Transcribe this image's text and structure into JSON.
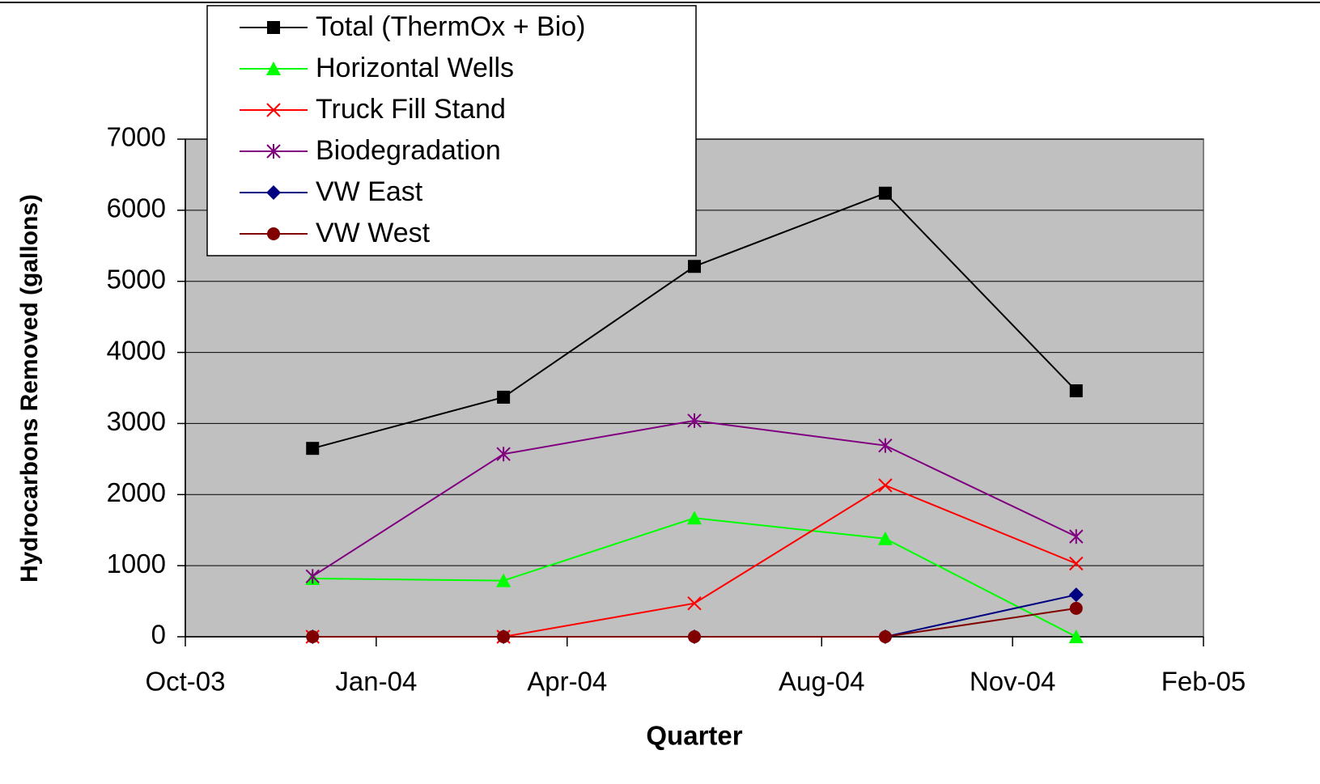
{
  "chart_data": {
    "type": "line",
    "x_label": "Quarter",
    "y_label": "Hydrocarbons Removed (gallons)",
    "x": [
      "2003-12",
      "2004-03",
      "2004-06",
      "2004-09",
      "2004-12"
    ],
    "xlim": [
      "2003-10",
      "2005-02"
    ],
    "xticks": [
      {
        "value": "2003-10",
        "label": "Oct-03"
      },
      {
        "value": "2004-01",
        "label": "Jan-04"
      },
      {
        "value": "2004-04",
        "label": "Apr-04"
      },
      {
        "value": "2004-08",
        "label": "Aug-04"
      },
      {
        "value": "2004-11",
        "label": "Nov-04"
      },
      {
        "value": "2005-02",
        "label": "Feb-05"
      }
    ],
    "ylim": [
      0,
      7000
    ],
    "yticks": [
      0,
      1000,
      2000,
      3000,
      4000,
      5000,
      6000,
      7000
    ],
    "grid": true,
    "legend": "top-left",
    "series": [
      {
        "name": "Total (ThermOx + Bio)",
        "color": "#000000",
        "marker": "square",
        "values": [
          2650,
          3370,
          5210,
          6240,
          3460
        ]
      },
      {
        "name": "Horizontal Wells",
        "color": "#00ff00",
        "marker": "triangle",
        "values": [
          820,
          790,
          1670,
          1380,
          0
        ]
      },
      {
        "name": "Truck Fill Stand",
        "color": "#ff0000",
        "marker": "x",
        "values": [
          0,
          0,
          470,
          2130,
          1030
        ]
      },
      {
        "name": "Biodegradation",
        "color": "#800080",
        "marker": "asterisk",
        "values": [
          850,
          2570,
          3040,
          2690,
          1410
        ]
      },
      {
        "name": "VW East",
        "color": "#000080",
        "marker": "diamond",
        "values": [
          0,
          0,
          0,
          0,
          590
        ]
      },
      {
        "name": "VW West",
        "color": "#800000",
        "marker": "circle",
        "values": [
          0,
          0,
          0,
          0,
          400
        ]
      }
    ]
  }
}
